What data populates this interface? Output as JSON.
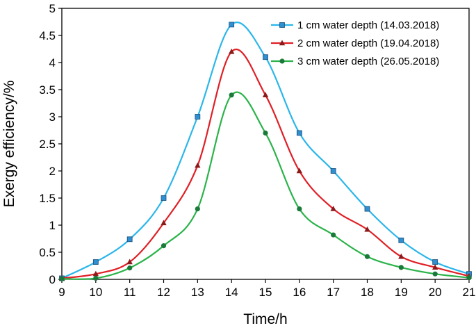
{
  "chart_data": {
    "type": "line",
    "title": "",
    "xlabel": "Time/h",
    "ylabel": "Exergy efficiency/%",
    "xlim": [
      9,
      21
    ],
    "ylim": [
      0,
      5
    ],
    "x_ticks": [
      9,
      10,
      11,
      12,
      13,
      14,
      15,
      16,
      17,
      18,
      19,
      20,
      21
    ],
    "y_ticks": [
      0,
      0.5,
      1,
      1.5,
      2,
      2.5,
      3,
      3.5,
      4,
      4.5,
      5
    ],
    "x_tick_labels": [
      "9",
      "10",
      "11",
      "12",
      "13",
      "14",
      "15",
      "16",
      "17",
      "18",
      "19",
      "20",
      "21"
    ],
    "y_tick_labels": [
      "0",
      "0.5",
      "1",
      "1.5",
      "2",
      "2.5",
      "3",
      "3.5",
      "4",
      "4.5",
      "5"
    ],
    "grid": false,
    "legend_position": "top-right",
    "series": [
      {
        "name": "1 cm water depth (14.03.2018)",
        "color": "#2bb6ea",
        "marker": "square",
        "marker_color": "#2f8fd0",
        "x": [
          9,
          10,
          11,
          12,
          13,
          14,
          15,
          16,
          17,
          18,
          19,
          20,
          21
        ],
        "values": [
          0.02,
          0.32,
          0.74,
          1.5,
          3.0,
          4.7,
          4.1,
          2.7,
          2.0,
          1.3,
          0.72,
          0.32,
          0.1
        ]
      },
      {
        "name": "2 cm water depth (19.04.2018)",
        "color": "#e01f26",
        "marker": "triangle",
        "marker_color": "#8b1a1a",
        "x": [
          9,
          10,
          11,
          12,
          13,
          14,
          15,
          16,
          17,
          18,
          19,
          20,
          21
        ],
        "values": [
          0.02,
          0.1,
          0.32,
          1.04,
          2.1,
          4.2,
          3.4,
          2.0,
          1.3,
          0.92,
          0.42,
          0.22,
          0.06
        ]
      },
      {
        "name": "3 cm water depth (26.05.2018)",
        "color": "#2bb34a",
        "marker": "circle",
        "marker_color": "#1a7a3a",
        "x": [
          9,
          10,
          11,
          12,
          13,
          14,
          15,
          16,
          17,
          18,
          19,
          20,
          21
        ],
        "values": [
          0.01,
          0.02,
          0.21,
          0.62,
          1.3,
          3.4,
          2.7,
          1.3,
          0.82,
          0.42,
          0.22,
          0.1,
          0.03
        ]
      }
    ]
  }
}
